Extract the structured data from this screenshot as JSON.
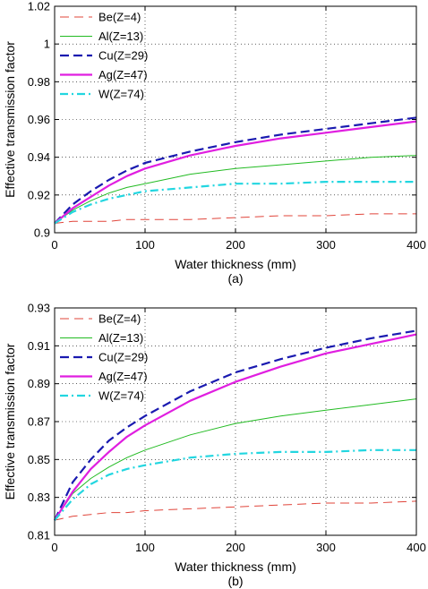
{
  "figure": {
    "panel_labels": [
      "(a)",
      "(b)"
    ]
  },
  "chart_data": [
    {
      "type": "line",
      "title": "",
      "xlabel": "Water thickness (mm)",
      "ylabel": "Effective transmission factor",
      "xlim": [
        0,
        400
      ],
      "ylim": [
        0.9,
        1.02
      ],
      "xticks": [
        0,
        100,
        200,
        300,
        400
      ],
      "yticks": [
        0.9,
        0.92,
        0.94,
        0.96,
        0.98,
        1,
        1.02
      ],
      "ytick_labels": [
        "0.9",
        "0.92",
        "0.94",
        "0.96",
        "0.98",
        "1",
        "1.02"
      ],
      "grid": true,
      "legend_position": "top-left",
      "x": [
        0,
        20,
        40,
        60,
        80,
        100,
        150,
        200,
        250,
        300,
        350,
        400
      ],
      "series": [
        {
          "name": "Be(Z=4)",
          "color": "#e0443a",
          "dash": "10 6",
          "width": 1,
          "values": [
            0.905,
            0.906,
            0.906,
            0.906,
            0.907,
            0.907,
            0.907,
            0.908,
            0.909,
            0.909,
            0.91,
            0.91
          ]
        },
        {
          "name": "Al(Z=13)",
          "color": "#22bb22",
          "dash": "",
          "width": 1,
          "values": [
            0.905,
            0.912,
            0.917,
            0.921,
            0.924,
            0.926,
            0.931,
            0.934,
            0.936,
            0.938,
            0.94,
            0.941
          ]
        },
        {
          "name": "Cu(Z=29)",
          "color": "#1a1ab0",
          "dash": "10 5",
          "width": 2.2,
          "values": [
            0.905,
            0.915,
            0.922,
            0.928,
            0.933,
            0.937,
            0.943,
            0.948,
            0.952,
            0.955,
            0.958,
            0.961
          ]
        },
        {
          "name": "Ag(Z=47)",
          "color": "#e01ee0",
          "dash": "",
          "width": 2.2,
          "values": [
            0.905,
            0.913,
            0.919,
            0.925,
            0.93,
            0.934,
            0.941,
            0.946,
            0.95,
            0.953,
            0.956,
            0.959
          ]
        },
        {
          "name": "W(Z=74)",
          "color": "#22d6e0",
          "dash": "9 4 2 4",
          "width": 2.2,
          "values": [
            0.905,
            0.911,
            0.915,
            0.918,
            0.92,
            0.922,
            0.924,
            0.926,
            0.926,
            0.927,
            0.927,
            0.927
          ]
        }
      ]
    },
    {
      "type": "line",
      "title": "",
      "xlabel": "Water thickness (mm)",
      "ylabel": "Effective transmission factor",
      "xlim": [
        0,
        400
      ],
      "ylim": [
        0.81,
        0.93
      ],
      "xticks": [
        0,
        100,
        200,
        300,
        400
      ],
      "yticks": [
        0.81,
        0.83,
        0.85,
        0.87,
        0.89,
        0.91,
        0.93
      ],
      "ytick_labels": [
        "0.81",
        "0.83",
        "0.85",
        "0.87",
        "0.89",
        "0.91",
        "0.93"
      ],
      "grid": true,
      "legend_position": "top-left",
      "x": [
        0,
        20,
        40,
        60,
        80,
        100,
        150,
        200,
        250,
        300,
        350,
        400
      ],
      "series": [
        {
          "name": "Be(Z=4)",
          "color": "#e0443a",
          "dash": "10 6",
          "width": 1,
          "values": [
            0.818,
            0.82,
            0.821,
            0.822,
            0.822,
            0.823,
            0.824,
            0.825,
            0.826,
            0.827,
            0.827,
            0.828
          ]
        },
        {
          "name": "Al(Z=13)",
          "color": "#22bb22",
          "dash": "",
          "width": 1,
          "values": [
            0.818,
            0.832,
            0.84,
            0.846,
            0.851,
            0.855,
            0.863,
            0.869,
            0.873,
            0.876,
            0.879,
            0.882
          ]
        },
        {
          "name": "Cu(Z=29)",
          "color": "#1a1ab0",
          "dash": "10 5",
          "width": 2.2,
          "values": [
            0.818,
            0.838,
            0.85,
            0.86,
            0.867,
            0.873,
            0.886,
            0.896,
            0.903,
            0.909,
            0.914,
            0.918
          ]
        },
        {
          "name": "Ag(Z=47)",
          "color": "#e01ee0",
          "dash": "",
          "width": 2.2,
          "values": [
            0.818,
            0.833,
            0.845,
            0.854,
            0.862,
            0.868,
            0.881,
            0.891,
            0.899,
            0.906,
            0.911,
            0.916
          ]
        },
        {
          "name": "W(Z=74)",
          "color": "#22d6e0",
          "dash": "9 4 2 4",
          "width": 2.2,
          "values": [
            0.818,
            0.829,
            0.837,
            0.842,
            0.845,
            0.847,
            0.851,
            0.853,
            0.854,
            0.854,
            0.855,
            0.855
          ]
        }
      ]
    }
  ]
}
